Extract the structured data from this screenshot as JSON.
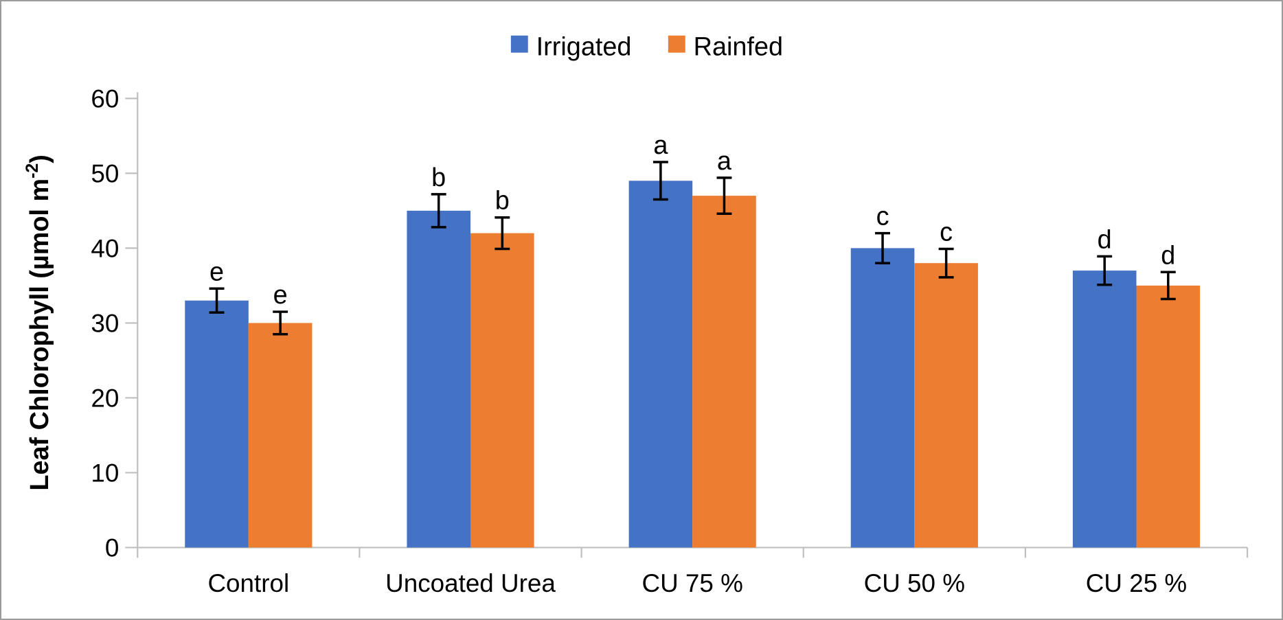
{
  "chart_data": {
    "type": "bar",
    "title": "",
    "categories": [
      "Control",
      "Uncoated Urea",
      "CU 75 %",
      "CU 50 %",
      "CU 25 %"
    ],
    "series": [
      {
        "name": "Irrigated",
        "color": "#4472C4",
        "values": [
          33,
          45,
          49,
          40,
          37
        ],
        "errors": [
          1.6,
          2.2,
          2.5,
          2.0,
          1.9
        ],
        "letters": [
          "e",
          "b",
          "a",
          "c",
          "d"
        ]
      },
      {
        "name": "Rainfed",
        "color": "#ED7D31",
        "values": [
          30,
          42,
          47,
          38,
          35
        ],
        "errors": [
          1.5,
          2.1,
          2.4,
          1.9,
          1.8
        ],
        "letters": [
          "e",
          "b",
          "a",
          "c",
          "d"
        ]
      }
    ],
    "xlabel": "",
    "ylabel": "Leaf Chlorophyll (µmol m-2)",
    "ylabel_parts": {
      "base": "Leaf Chlorophyll (µmol m",
      "superscript": "-2",
      "close": ")"
    },
    "ylim": [
      0,
      60
    ],
    "yticks": [
      0,
      10,
      20,
      30,
      40,
      50,
      60
    ],
    "grid": false,
    "legend_position": "top-center",
    "error_bars": true,
    "colors": {
      "axis": "#BFBFBF",
      "text": "#000000",
      "error_bar": "#000000",
      "background": "#FFFFFF",
      "frame_border": "#9B9B9B"
    }
  }
}
